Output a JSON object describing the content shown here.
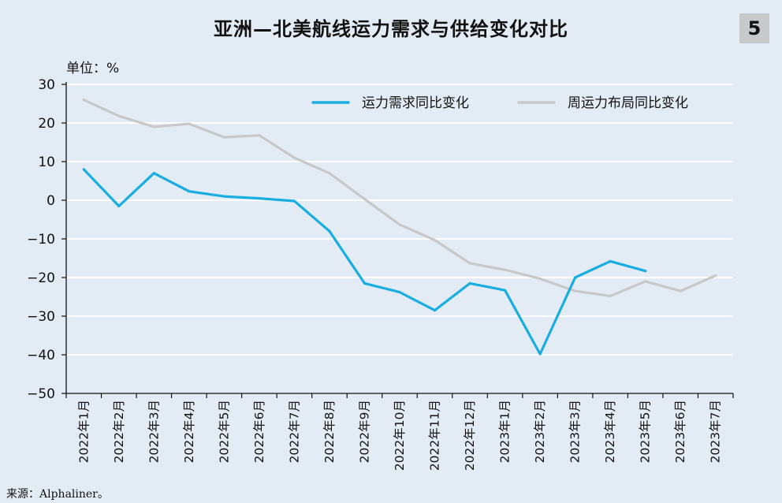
{
  "title": "亚洲—北美航线运力需求与供给变化对比",
  "badge": "5",
  "unit_label": "单位：%",
  "source": "来源：Alphaliner。",
  "colors": {
    "background": "#e3ecf4",
    "demand": "#1aaee0",
    "supply": "#c8c8c8",
    "grid": "#ffffff",
    "axis": "#111111",
    "badge": "#c8c9cb"
  },
  "chart_data": {
    "type": "line",
    "categories": [
      "2022年1月",
      "2022年2月",
      "2022年3月",
      "2022年4月",
      "2022年5月",
      "2022年6月",
      "2022年7月",
      "2022年8月",
      "2022年9月",
      "2022年10月",
      "2022年11月",
      "2022年12月",
      "2023年1月",
      "2023年2月",
      "2023年3月",
      "2023年4月",
      "2023年5月",
      "2023年6月",
      "2023年7月"
    ],
    "series": [
      {
        "name": "运力需求同比变化",
        "color": "#1aaee0",
        "values": [
          8,
          -1.5,
          7,
          2.3,
          1,
          0.5,
          -0.2,
          -8,
          -21.5,
          -23.8,
          -28.5,
          -21.5,
          -23.3,
          -39.8,
          -20,
          -15.8,
          -18.3,
          null,
          null
        ]
      },
      {
        "name": "周运力布局同比变化",
        "color": "#c8c8c8",
        "values": [
          26,
          21.8,
          19,
          19.8,
          16.3,
          16.8,
          11,
          7,
          0.3,
          -6.3,
          -10.3,
          -16.3,
          -18,
          -20.3,
          -23.5,
          -24.8,
          -21,
          -23.5,
          -19.5
        ]
      }
    ],
    "ylim": [
      -50,
      30
    ],
    "yticks": [
      "30",
      "20",
      "10",
      "0",
      "-10",
      "-20",
      "-30",
      "-40",
      "-50"
    ],
    "ytick_values": [
      30,
      20,
      10,
      0,
      -10,
      -20,
      -30,
      -40,
      -50
    ],
    "grid": true,
    "legend": "top-right"
  }
}
